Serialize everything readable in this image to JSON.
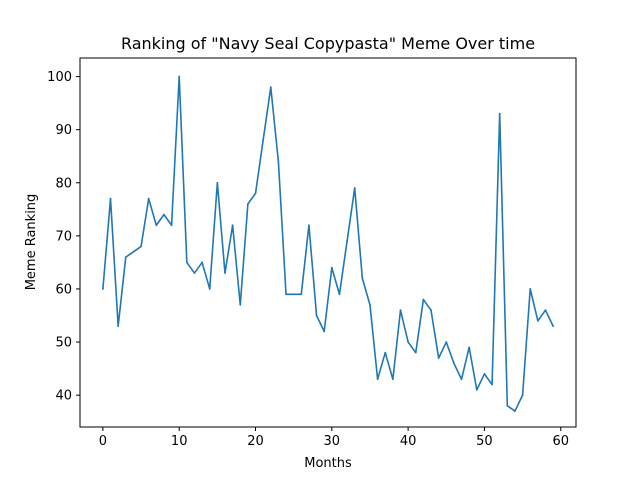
{
  "chart_data": {
    "type": "line",
    "title": "Ranking of \"Navy Seal Copypasta\" Meme Over time",
    "xlabel": "Months",
    "ylabel": "Meme Ranking",
    "xlim": [
      -3.0,
      62.0
    ],
    "ylim": [
      34.0,
      103.5
    ],
    "xticks": [
      0,
      10,
      20,
      30,
      40,
      50,
      60
    ],
    "yticks": [
      40,
      50,
      60,
      70,
      80,
      90,
      100
    ],
    "grid": false,
    "line_color": "#1f77b4",
    "series": [
      {
        "x": [
          0,
          1,
          2,
          3,
          4,
          5,
          6,
          7,
          8,
          9,
          10,
          11,
          12,
          13,
          14,
          15,
          16,
          17,
          18,
          19,
          20,
          21,
          22,
          23,
          24,
          25,
          26,
          27,
          28,
          29,
          30,
          31,
          32,
          33,
          34,
          35,
          36,
          37,
          38,
          39,
          40,
          41,
          42,
          43,
          44,
          45,
          46,
          47,
          48,
          49,
          50,
          51,
          52,
          53,
          54,
          55,
          56,
          57,
          58,
          59
        ],
        "values": [
          60,
          77,
          53,
          66,
          67,
          68,
          77,
          72,
          74,
          72,
          100,
          65,
          63,
          65,
          60,
          80,
          63,
          72,
          57,
          76,
          78,
          88,
          98,
          84,
          59,
          59,
          59,
          72,
          55,
          52,
          64,
          59,
          69,
          79,
          62,
          57,
          43,
          48,
          43,
          56,
          50,
          48,
          58,
          56,
          47,
          50,
          46,
          43,
          49,
          41,
          44,
          42,
          93,
          38,
          37,
          40,
          60,
          54,
          56,
          53
        ]
      }
    ]
  }
}
